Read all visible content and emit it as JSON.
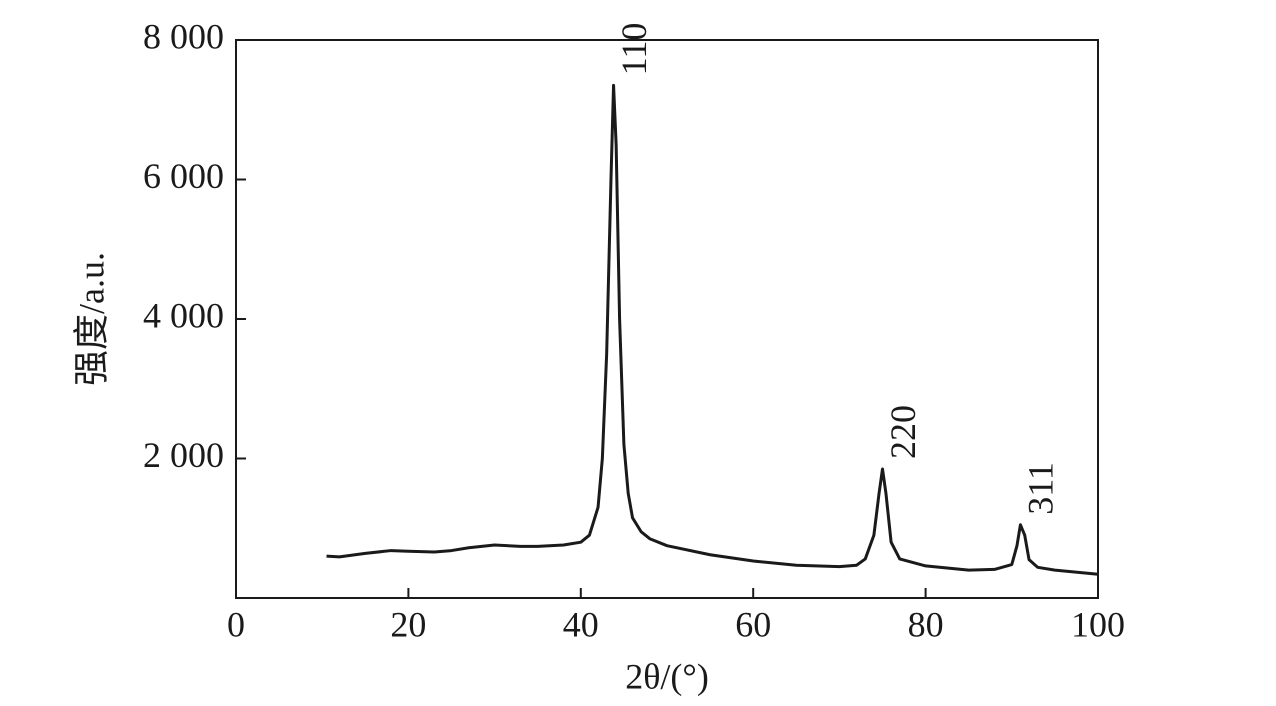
{
  "chart_data": {
    "type": "line",
    "xlabel": "2θ/(°)",
    "ylabel": "强度/a.u.",
    "x": [
      10.5,
      12,
      15,
      18,
      20,
      23,
      25,
      27,
      30,
      33,
      35,
      38,
      40,
      41,
      42,
      42.5,
      43,
      43.5,
      43.8,
      44.1,
      44.5,
      45,
      45.5,
      46,
      47,
      48,
      50,
      55,
      60,
      65,
      70,
      72,
      73,
      74,
      74.6,
      75,
      75.4,
      76,
      77,
      80,
      85,
      88,
      90,
      90.6,
      91,
      91.5,
      92,
      93,
      95,
      100
    ],
    "series": [
      {
        "color": "#1a1a1a",
        "values": [
          600,
          590,
          640,
          680,
          670,
          660,
          680,
          720,
          760,
          740,
          740,
          760,
          800,
          900,
          1300,
          2000,
          3500,
          6000,
          7350,
          6500,
          4000,
          2200,
          1500,
          1150,
          950,
          850,
          750,
          620,
          530,
          470,
          450,
          470,
          560,
          900,
          1500,
          1850,
          1500,
          800,
          560,
          460,
          400,
          410,
          480,
          750,
          1050,
          900,
          550,
          440,
          400,
          340
        ]
      }
    ],
    "xlim": [
      0,
      100
    ],
    "xticks": [
      0,
      20,
      40,
      60,
      80,
      100
    ],
    "ylim": [
      0,
      8000
    ],
    "yticks": [
      {
        "value": 2000,
        "label": "2 000"
      },
      {
        "value": 4000,
        "label": "4 000"
      },
      {
        "value": 6000,
        "label": "6 000"
      },
      {
        "value": 8000,
        "label": "8 000"
      }
    ],
    "annotations": [
      {
        "text": "110",
        "x": 43.8,
        "y": 7350
      },
      {
        "text": "220",
        "x": 75,
        "y": 1850
      },
      {
        "text": "311",
        "x": 91,
        "y": 1050
      }
    ]
  }
}
